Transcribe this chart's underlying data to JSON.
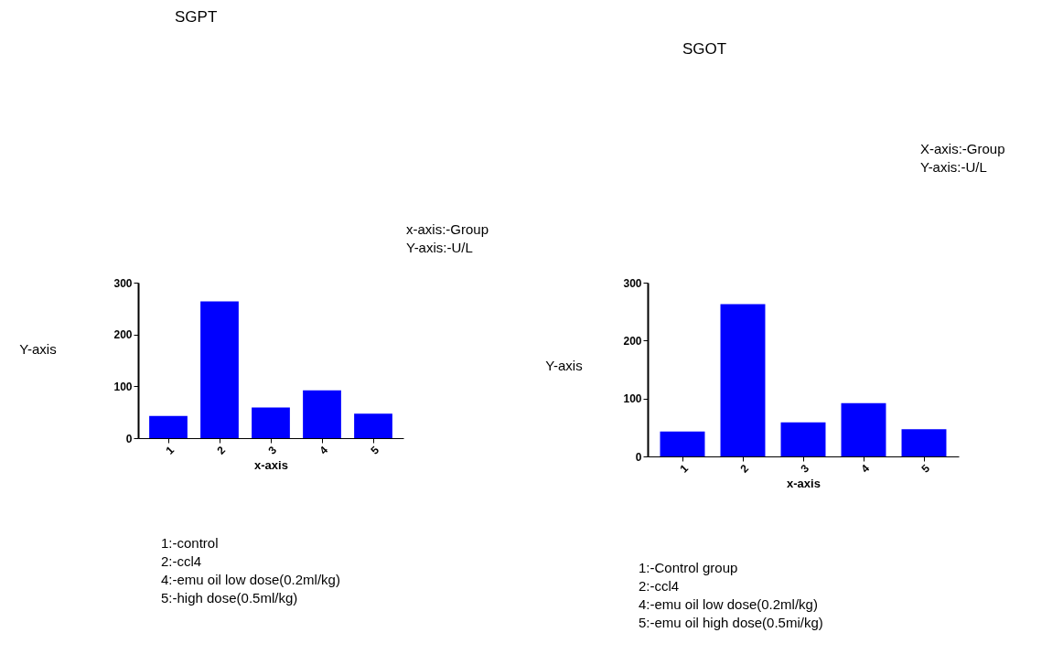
{
  "chart_data": [
    {
      "type": "bar",
      "title": "SGPT",
      "xlabel": "x-axis",
      "ylabel": "Y-axis",
      "categories": [
        "1",
        "2",
        "3",
        "4",
        "5"
      ],
      "values": [
        43,
        264,
        59,
        92,
        47
      ],
      "color": "#0000ff",
      "ylim": [
        0,
        300
      ],
      "yticks": [
        0,
        100,
        200,
        300
      ],
      "grid": false,
      "annotations": [
        "x-axis:-Group",
        "Y-axis:-U/L",
        "1:-control",
        "2:-ccl4",
        "4:-emu oil low dose(0.2ml/kg)",
        "5:-high dose(0.5ml/kg)"
      ]
    },
    {
      "type": "bar",
      "title": "SGOT",
      "xlabel": "x-axis",
      "ylabel": "Y-axis",
      "categories": [
        "1",
        "2",
        "3",
        "4",
        "5"
      ],
      "values": [
        43,
        263,
        59,
        92,
        47
      ],
      "color": "#0000ff",
      "ylim": [
        0,
        300
      ],
      "yticks": [
        0,
        100,
        200,
        300
      ],
      "grid": false,
      "annotations": [
        "X-axis:-Group",
        "Y-axis:-U/L",
        "1:-Control group",
        "2:-ccl4",
        "4:-emu oil low dose(0.2ml/kg)",
        "5:-emu oil high dose(0.5mi/kg)"
      ]
    }
  ]
}
